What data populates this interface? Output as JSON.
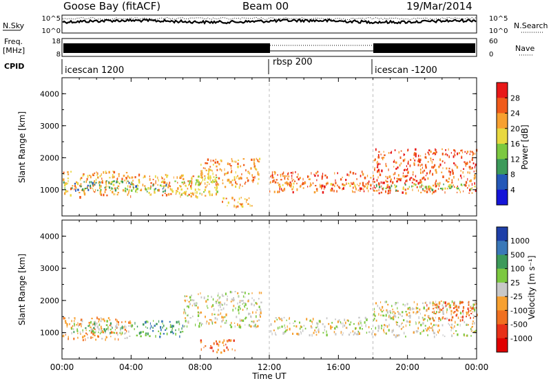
{
  "header": {
    "station": "Goose Bay (fitACF)",
    "beam": "Beam 00",
    "date": "19/Mar/2014"
  },
  "panels": {
    "nsky": {
      "label": "N.Sky",
      "left_ticks": [
        "10^5",
        "10^0"
      ],
      "right_ticks": [
        "10^5",
        "10^0"
      ],
      "right_label": "N.Search"
    },
    "freq": {
      "label": "Freq.",
      "unit": "[MHz]",
      "left_ticks": [
        "18",
        "8"
      ],
      "right_ticks": [
        "60",
        "0"
      ],
      "right_label": "Nave"
    },
    "cpid": {
      "label": "CPID",
      "segments": [
        {
          "name": "icescan 1200",
          "start_hour": 0
        },
        {
          "name": "rbsp 200",
          "start_hour": 12
        },
        {
          "name": "icescan -1200",
          "start_hour": 18
        }
      ]
    }
  },
  "power_colorbar": {
    "label": "Power [dB]",
    "ticks": [
      "28",
      "24",
      "20",
      "16",
      "12",
      "8",
      "4"
    ],
    "colors": [
      "#e81818",
      "#f05a1a",
      "#f7a030",
      "#e8d840",
      "#7cc840",
      "#3c9a5a",
      "#2458b8",
      "#1414d8"
    ]
  },
  "velocity_colorbar": {
    "label": "Velocity [m s⁻¹]",
    "ticks": [
      "1000",
      "500",
      "100",
      "25",
      "-25",
      "-100",
      "-500",
      "-1000"
    ],
    "colors": [
      "#1e3fa8",
      "#3a78b8",
      "#3c9a5a",
      "#7cc840",
      "#c8c8c8",
      "#f7a030",
      "#f07020",
      "#e83018",
      "#e00000"
    ]
  },
  "x_axis": {
    "label": "Time UT",
    "ticks": [
      "00:00",
      "04:00",
      "08:00",
      "12:00",
      "16:00",
      "20:00",
      "00:00"
    ],
    "tick_hours": [
      0,
      4,
      8,
      12,
      16,
      20,
      24
    ]
  },
  "chart_data": [
    {
      "type": "heatmap",
      "title": "",
      "xlabel": "",
      "ylabel": "Slant Range [km]",
      "xlim": [
        0,
        24
      ],
      "ylim": [
        180,
        4500
      ],
      "y_ticks": [
        1000,
        2000,
        3000,
        4000
      ],
      "colorbar": "Power [dB]",
      "scatter_regions": [
        {
          "x": [
            0.0,
            4.0
          ],
          "y": [
            800,
            1600
          ],
          "level": 5
        },
        {
          "x": [
            0.0,
            4.0
          ],
          "y": [
            1000,
            1300
          ],
          "level": 2
        },
        {
          "x": [
            4.0,
            8.0
          ],
          "y": [
            850,
            1500
          ],
          "level": 5
        },
        {
          "x": [
            4.0,
            6.0
          ],
          "y": [
            950,
            1200
          ],
          "level": 2
        },
        {
          "x": [
            6.5,
            9.0
          ],
          "y": [
            800,
            1500
          ],
          "level": 4
        },
        {
          "x": [
            8.0,
            11.5
          ],
          "y": [
            1100,
            2000
          ],
          "level": 5
        },
        {
          "x": [
            9.0,
            11.0
          ],
          "y": [
            500,
            800
          ],
          "level": 5
        },
        {
          "x": [
            12.0,
            18.0
          ],
          "y": [
            950,
            1600
          ],
          "level": 6
        },
        {
          "x": [
            12.0,
            18.0
          ],
          "y": [
            1100,
            1250
          ],
          "level": 5
        },
        {
          "x": [
            18.0,
            24.0
          ],
          "y": [
            900,
            2300
          ],
          "level": 6
        },
        {
          "x": [
            18.0,
            24.0
          ],
          "y": [
            1000,
            1200
          ],
          "level": 3
        }
      ]
    },
    {
      "type": "heatmap",
      "title": "",
      "xlabel": "Time UT",
      "ylabel": "Slant Range [km]",
      "xlim": [
        0,
        24
      ],
      "ylim": [
        180,
        4500
      ],
      "y_ticks": [
        1000,
        2000,
        3000,
        4000
      ],
      "colorbar": "Velocity [m s⁻¹]",
      "scatter_regions": [
        {
          "x": [
            0.0,
            4.0
          ],
          "y": [
            800,
            1500
          ],
          "level": 5
        },
        {
          "x": [
            0.5,
            3.5
          ],
          "y": [
            1000,
            1400
          ],
          "level": 3
        },
        {
          "x": [
            4.0,
            7.0
          ],
          "y": [
            900,
            1400
          ],
          "level": 2
        },
        {
          "x": [
            7.0,
            11.5
          ],
          "y": [
            1200,
            2300
          ],
          "level": 4
        },
        {
          "x": [
            8.0,
            10.0
          ],
          "y": [
            400,
            800
          ],
          "level": 6
        },
        {
          "x": [
            12.0,
            18.0
          ],
          "y": [
            950,
            1500
          ],
          "level": 4
        },
        {
          "x": [
            18.0,
            24.0
          ],
          "y": [
            900,
            2000
          ],
          "level": 4
        },
        {
          "x": [
            21.0,
            24.0
          ],
          "y": [
            1400,
            2000
          ],
          "level": 6
        }
      ]
    }
  ]
}
